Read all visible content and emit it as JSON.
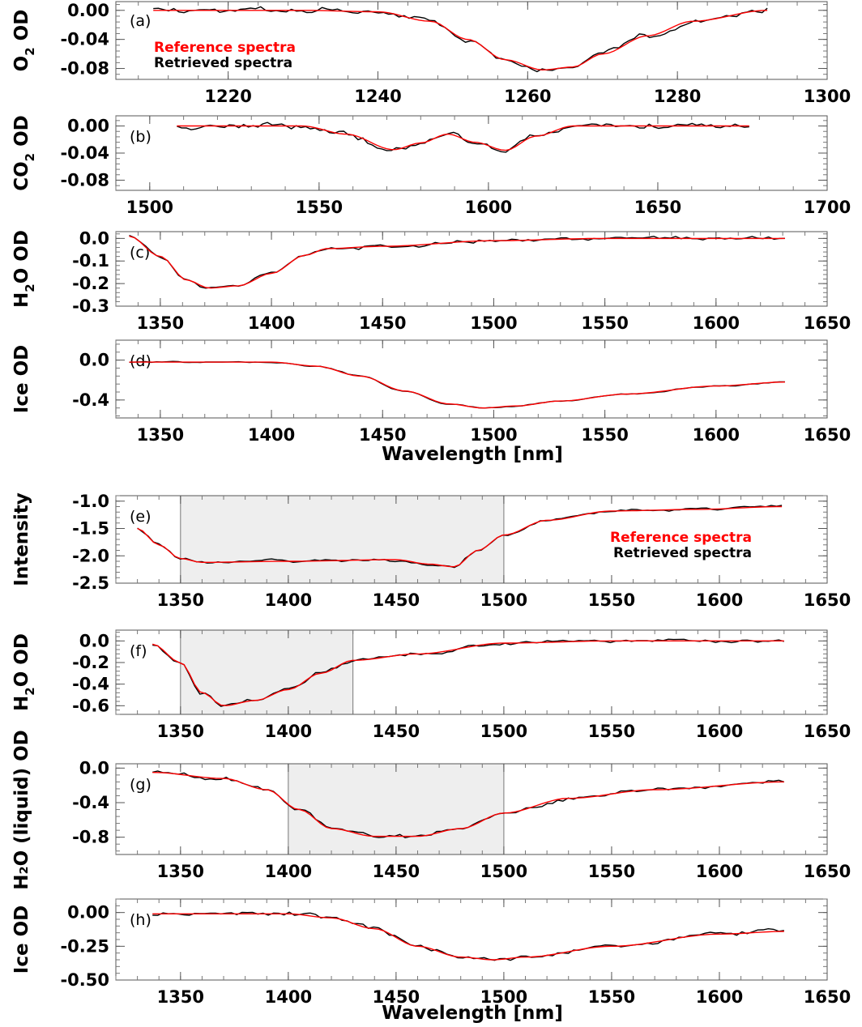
{
  "colors": {
    "reference": "#ff0000",
    "retrieved": "#000000",
    "shade": "#eeeeee"
  },
  "xlabel": "Wavelength [nm]",
  "legend": {
    "reference": "Reference spectra",
    "retrieved": "Retrieved spectra"
  },
  "chart_data": [
    {
      "id": "a",
      "type": "line",
      "panel_label": "(a)",
      "ylabel_main": "O",
      "ylabel_sub": "2",
      "ylabel_tail": " OD",
      "xlim": [
        1205,
        1300
      ],
      "xticks": [
        1220,
        1240,
        1260,
        1280,
        1300
      ],
      "ylim": [
        -0.095,
        0.012
      ],
      "yticks": [
        0.0,
        -0.04,
        -0.08
      ],
      "ytick_labels": [
        "0.00",
        "-0.04",
        "-0.08"
      ],
      "ref_x": [
        1210,
        1230,
        1240,
        1247,
        1252,
        1257,
        1262,
        1266,
        1270,
        1276,
        1282,
        1292
      ],
      "ref_y": [
        0,
        0,
        -0.002,
        -0.015,
        -0.04,
        -0.068,
        -0.082,
        -0.078,
        -0.06,
        -0.035,
        -0.015,
        0
      ],
      "noise": 0.004,
      "legend": true,
      "legend_pos": "top-left"
    },
    {
      "id": "b",
      "type": "line",
      "panel_label": "(b)",
      "ylabel_main": "CO",
      "ylabel_sub": "2",
      "ylabel_tail": " OD",
      "xlim": [
        1490,
        1700
      ],
      "xticks": [
        1500,
        1550,
        1600,
        1650,
        1700
      ],
      "ylim": [
        -0.095,
        0.015
      ],
      "yticks": [
        0.0,
        -0.04,
        -0.08
      ],
      "ytick_labels": [
        "0.00",
        "-0.04",
        "-0.08"
      ],
      "ref_x": [
        1508,
        1545,
        1558,
        1572,
        1580,
        1588,
        1596,
        1605,
        1614,
        1625,
        1650,
        1677
      ],
      "ref_y": [
        0,
        0,
        -0.012,
        -0.035,
        -0.025,
        -0.012,
        -0.024,
        -0.036,
        -0.015,
        0,
        0,
        0
      ],
      "noise": 0.005
    },
    {
      "id": "c",
      "type": "line",
      "panel_label": "(c)",
      "ylabel_main": "H",
      "ylabel_sub": "2",
      "ylabel_tail": "O OD",
      "xlim": [
        1330,
        1650
      ],
      "xticks": [
        1350,
        1400,
        1450,
        1500,
        1550,
        1600,
        1650
      ],
      "ylim": [
        -0.3,
        0.03
      ],
      "yticks": [
        0.0,
        -0.1,
        -0.2,
        -0.3
      ],
      "ytick_labels": [
        "0.0",
        "-0.1",
        "-0.2",
        "-0.3"
      ],
      "ref_x": [
        1336,
        1350,
        1362,
        1372,
        1385,
        1400,
        1415,
        1425,
        1450,
        1500,
        1550,
        1631
      ],
      "ref_y": [
        0.01,
        -0.08,
        -0.185,
        -0.22,
        -0.21,
        -0.155,
        -0.075,
        -0.045,
        -0.035,
        -0.01,
        0,
        0
      ],
      "noise": 0.008
    },
    {
      "id": "d",
      "type": "line",
      "panel_label": "(d)",
      "ylabel_main": "Ice OD",
      "ylabel_sub": "",
      "ylabel_tail": "",
      "xlim": [
        1330,
        1650
      ],
      "xticks": [
        1350,
        1400,
        1450,
        1500,
        1550,
        1600,
        1650
      ],
      "ylim": [
        -0.58,
        0.2
      ],
      "yticks": [
        0.0,
        -0.4
      ],
      "ytick_labels": [
        "0.0",
        "-0.4"
      ],
      "ref_x": [
        1336,
        1400,
        1420,
        1440,
        1460,
        1480,
        1495,
        1510,
        1530,
        1560,
        1600,
        1631
      ],
      "ref_y": [
        -0.02,
        -0.02,
        -0.06,
        -0.16,
        -0.31,
        -0.44,
        -0.48,
        -0.46,
        -0.41,
        -0.34,
        -0.26,
        -0.22
      ],
      "noise": 0.006
    },
    {
      "id": "e",
      "type": "line",
      "panel_label": "(e)",
      "ylabel_main": "Intensity",
      "ylabel_sub": "",
      "ylabel_tail": "",
      "xlim": [
        1320,
        1650
      ],
      "xticks": [
        1350,
        1400,
        1450,
        1500,
        1550,
        1600,
        1650
      ],
      "ylim": [
        -2.5,
        -0.9
      ],
      "yticks": [
        -1.0,
        -1.5,
        -2.0,
        -2.5
      ],
      "ytick_labels": [
        "-1.0",
        "-1.5",
        "-2.0",
        "-2.5"
      ],
      "shade": [
        1350,
        1500
      ],
      "ref_x": [
        1330,
        1340,
        1350,
        1360,
        1400,
        1450,
        1465,
        1477,
        1488,
        1500,
        1520,
        1550,
        1590,
        1629
      ],
      "ref_y": [
        -1.5,
        -1.8,
        -2.05,
        -2.12,
        -2.1,
        -2.07,
        -2.15,
        -2.2,
        -1.9,
        -1.62,
        -1.35,
        -1.18,
        -1.15,
        -1.1
      ],
      "noise": 0.03,
      "legend": true,
      "legend_pos": "right"
    },
    {
      "id": "f",
      "type": "line",
      "panel_label": "(f)",
      "ylabel_main": "H",
      "ylabel_sub": "2",
      "ylabel_tail": "O OD",
      "xlim": [
        1320,
        1650
      ],
      "xticks": [
        1350,
        1400,
        1450,
        1500,
        1550,
        1600,
        1650
      ],
      "ylim": [
        -0.68,
        0.1
      ],
      "yticks": [
        0.0,
        -0.2,
        -0.4,
        -0.6
      ],
      "ytick_labels": [
        "0.0",
        "-0.2",
        "-0.4",
        "-0.6"
      ],
      "shade": [
        1350,
        1430
      ],
      "ref_x": [
        1337,
        1350,
        1360,
        1370,
        1385,
        1400,
        1415,
        1430,
        1460,
        1500,
        1550,
        1630
      ],
      "ref_y": [
        -0.03,
        -0.2,
        -0.48,
        -0.6,
        -0.55,
        -0.45,
        -0.3,
        -0.18,
        -0.12,
        -0.02,
        0,
        0
      ],
      "noise": 0.02
    },
    {
      "id": "g",
      "type": "line",
      "panel_label": "(g)",
      "ylabel_main": "",
      "ylabel_sub": "",
      "ylabel_tail": "",
      "xlim": [
        1320,
        1650
      ],
      "xticks": [
        1350,
        1400,
        1450,
        1500,
        1550,
        1600,
        1650
      ],
      "ylim": [
        -1.0,
        0.05
      ],
      "yticks": [
        0.0,
        -0.4,
        -0.8
      ],
      "ytick_labels": [
        "0.0",
        "-0.4",
        "-0.8"
      ],
      "shade": [
        1400,
        1500
      ],
      "ref_x": [
        1337,
        1370,
        1390,
        1405,
        1420,
        1440,
        1460,
        1480,
        1500,
        1530,
        1570,
        1630
      ],
      "ref_y": [
        -0.05,
        -0.12,
        -0.25,
        -0.48,
        -0.7,
        -0.79,
        -0.79,
        -0.7,
        -0.52,
        -0.35,
        -0.25,
        -0.16
      ],
      "noise": 0.025
    },
    {
      "id": "h",
      "type": "line",
      "panel_label": "(h)",
      "ylabel_main": "Ice OD",
      "ylabel_sub": "",
      "ylabel_tail": "",
      "xlim": [
        1320,
        1650
      ],
      "xticks": [
        1350,
        1400,
        1450,
        1500,
        1550,
        1600,
        1650
      ],
      "ylim": [
        -0.5,
        0.1
      ],
      "yticks": [
        0.0,
        -0.25,
        -0.5
      ],
      "ytick_labels": [
        "0.00",
        "-0.25",
        "-0.50"
      ],
      "ref_x": [
        1337,
        1400,
        1420,
        1440,
        1460,
        1480,
        1495,
        1510,
        1550,
        1600,
        1630
      ],
      "ref_y": [
        -0.01,
        -0.01,
        -0.04,
        -0.12,
        -0.25,
        -0.33,
        -0.35,
        -0.33,
        -0.25,
        -0.16,
        -0.14
      ],
      "noise": 0.018
    }
  ],
  "ylabel_g_combined": "H₂O (liquid) OD"
}
